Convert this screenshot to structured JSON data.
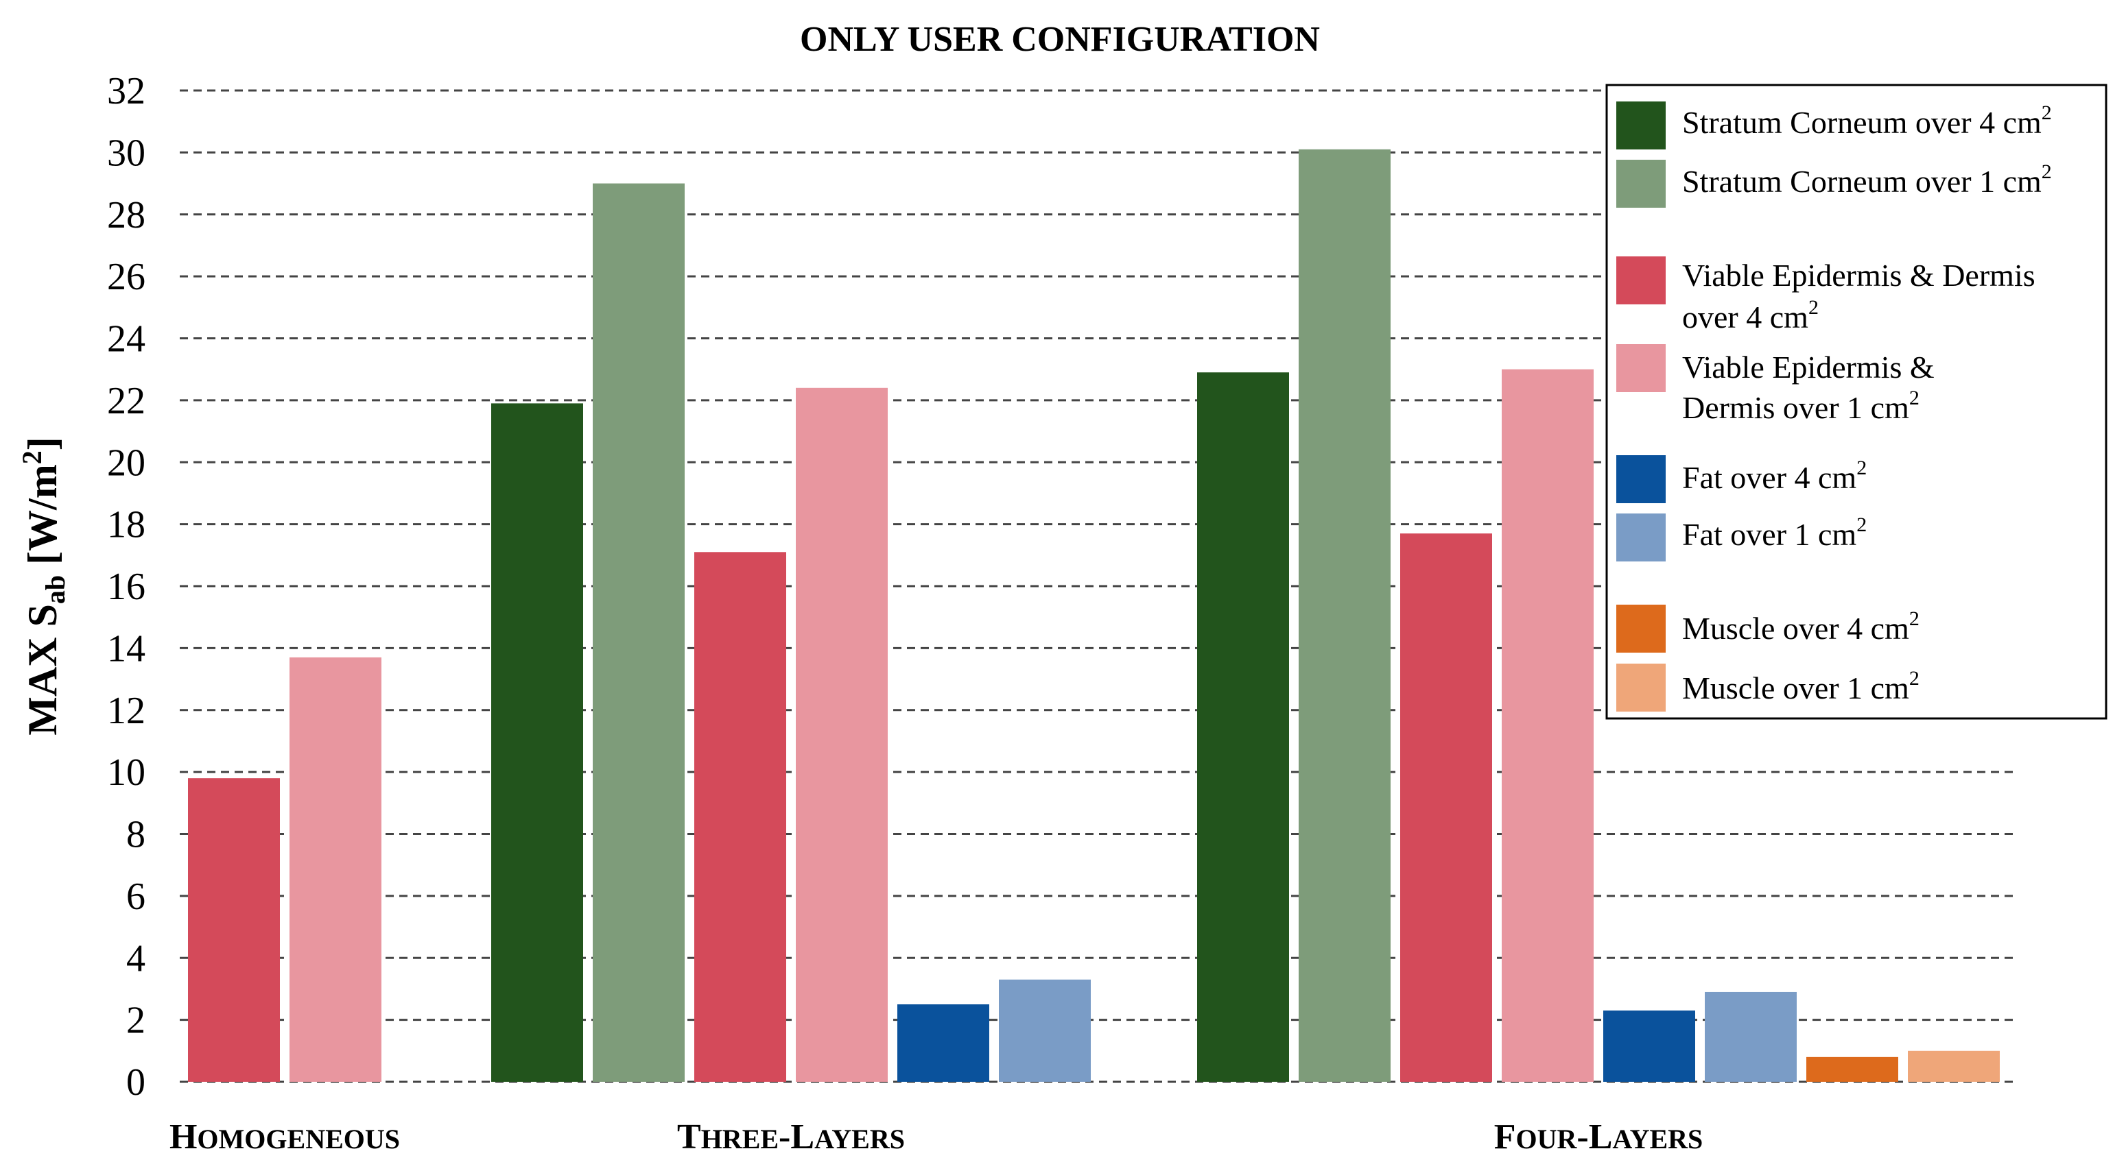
{
  "chart_data": {
    "type": "bar",
    "title": "ONLY USER CONFIGURATION",
    "ylabel": {
      "main": "MAX S",
      "sub": "ab",
      "unit_pre": " [W/m",
      "unit_sup": "2",
      "unit_post": "]"
    },
    "ylim": [
      0,
      32
    ],
    "yticks": [
      "0",
      "2",
      "4",
      "6",
      "8",
      "10",
      "12",
      "14",
      "16",
      "18",
      "20",
      "22",
      "24",
      "26",
      "28",
      "30",
      "32"
    ],
    "grid": true,
    "legend_position": "top-right",
    "groups": [
      {
        "label_first": "H",
        "label_rest": "OMOGENEOUS",
        "bars": [
          {
            "series": "ved4",
            "value": 9.8
          },
          {
            "series": "ved1",
            "value": 13.7
          }
        ]
      },
      {
        "label_first": "T",
        "label_rest": "HREE",
        "label_mid_first": "L",
        "label_mid_rest": "AYERS",
        "bars": [
          {
            "series": "sc4",
            "value": 21.9
          },
          {
            "series": "sc1",
            "value": 29.0
          },
          {
            "series": "ved4",
            "value": 17.1
          },
          {
            "series": "ved1",
            "value": 22.4
          },
          {
            "series": "fat4",
            "value": 2.5
          },
          {
            "series": "fat1",
            "value": 3.3
          }
        ]
      },
      {
        "label_first": "F",
        "label_rest": "OUR",
        "label_mid_first": "L",
        "label_mid_rest": "AYERS",
        "bars": [
          {
            "series": "sc4",
            "value": 22.9
          },
          {
            "series": "sc1",
            "value": 30.1
          },
          {
            "series": "ved4",
            "value": 17.7
          },
          {
            "series": "ved1",
            "value": 23.0
          },
          {
            "series": "fat4",
            "value": 2.3
          },
          {
            "series": "fat1",
            "value": 2.9
          },
          {
            "series": "mus4",
            "value": 0.8
          },
          {
            "series": "mus1",
            "value": 1.0
          }
        ]
      }
    ],
    "series": [
      {
        "id": "sc4",
        "lines": [
          "Stratum Corneum over 4 cm"
        ],
        "sup": "2",
        "color": "#22541c"
      },
      {
        "id": "sc1",
        "lines": [
          "Stratum Corneum over 1 cm"
        ],
        "sup": "2",
        "color": "#7e9c7a"
      },
      {
        "id": "ved4",
        "lines": [
          "Viable Epidermis & Dermis",
          "over 4 cm"
        ],
        "sup": "2",
        "color": "#d44a5a"
      },
      {
        "id": "ved1",
        "lines": [
          "Viable Epidermis &",
          "Dermis over 1 cm"
        ],
        "sup": "2",
        "color": "#e8969f"
      },
      {
        "id": "fat4",
        "lines": [
          "Fat over 4 cm"
        ],
        "sup": "2",
        "color": "#0a529c"
      },
      {
        "id": "fat1",
        "lines": [
          "Fat over 1 cm"
        ],
        "sup": "2",
        "color": "#7a9cc6"
      },
      {
        "id": "mus4",
        "lines": [
          "Muscle over 4 cm"
        ],
        "sup": "2",
        "color": "#dd6a1c"
      },
      {
        "id": "mus1",
        "lines": [
          "Muscle over 1 cm"
        ],
        "sup": "2",
        "color": "#efa679"
      }
    ]
  }
}
